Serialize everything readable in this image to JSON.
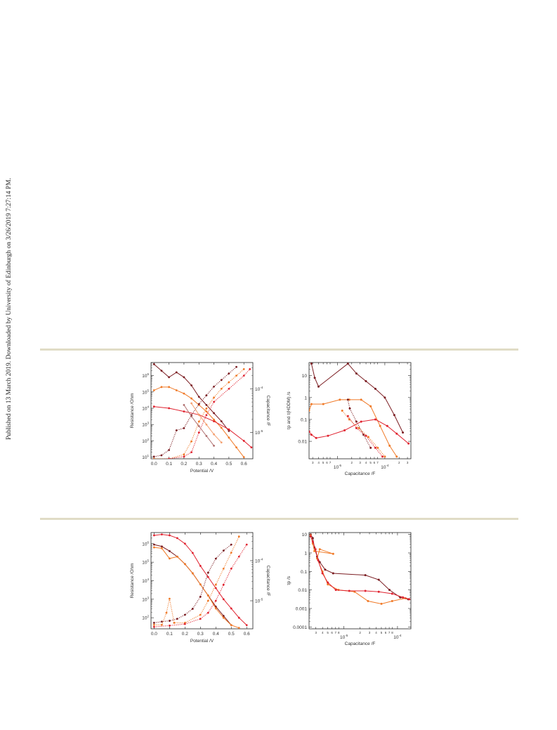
{
  "sidebar_note": "Published on 13 March 2019. Downloaded by University of Edinburgh on 3/26/2019 7:27:14 PM.",
  "colors": {
    "dark": "#7b1d22",
    "orange": "#f07a28",
    "red": "#e0222f",
    "rule": "#e0dcc6"
  },
  "chart_data": [
    {
      "type": "line",
      "xlabel": "Potential /V",
      "ylabel": "Resistance /Ohm",
      "y2label": "Capacitance /F",
      "x_ticks": [
        "0.0",
        "0.1",
        "0.2",
        "0.3",
        "0.4",
        "0.5",
        "0.6"
      ],
      "y_ticks": [
        "10^1",
        "10^2",
        "10^3",
        "10^4",
        "10^5",
        "10^6"
      ],
      "y2_ticks": [
        "10^-5",
        "10^-4"
      ],
      "xlim": [
        -0.02,
        0.66
      ],
      "ylim_log10": [
        0.9,
        6.8
      ],
      "y2lim_log10": [
        -5.6,
        -3.4
      ],
      "series": [
        {
          "axis": "left",
          "style": "solid",
          "color": "dark",
          "x": [
            0.0,
            0.05,
            0.1,
            0.15,
            0.2,
            0.25,
            0.3,
            0.35,
            0.4,
            0.45,
            0.5
          ],
          "y": [
            6.7,
            6.3,
            5.9,
            6.2,
            5.9,
            5.4,
            4.7,
            4.2,
            3.7,
            3.2,
            2.6
          ]
        },
        {
          "axis": "left",
          "style": "solid",
          "color": "orange",
          "x": [
            0.0,
            0.05,
            0.1,
            0.15,
            0.2,
            0.25,
            0.3,
            0.35,
            0.4,
            0.45,
            0.5,
            0.55,
            0.6
          ],
          "y": [
            5.1,
            5.3,
            5.3,
            5.1,
            4.9,
            4.6,
            4.2,
            3.8,
            3.3,
            2.8,
            2.2,
            1.6,
            1.0
          ]
        },
        {
          "axis": "left",
          "style": "solid",
          "color": "red",
          "x": [
            0.0,
            0.1,
            0.2,
            0.3,
            0.4,
            0.5,
            0.6,
            0.65
          ],
          "y": [
            4.1,
            4.0,
            3.8,
            3.6,
            3.2,
            2.7,
            2.0,
            1.6
          ]
        },
        {
          "axis": "right",
          "style": "dotted",
          "color": "dark",
          "x": [
            0.0,
            0.05,
            0.1,
            0.15,
            0.2,
            0.25,
            0.3,
            0.35,
            0.4,
            0.45,
            0.5,
            0.55
          ],
          "y": [
            -5.55,
            -5.52,
            -5.4,
            -4.95,
            -4.9,
            -4.6,
            -4.35,
            -4.15,
            -3.95,
            -3.8,
            -3.65,
            -3.5
          ]
        },
        {
          "axis": "right",
          "style": "dotted",
          "color": "orange",
          "x": [
            0.0,
            0.1,
            0.2,
            0.25,
            0.3,
            0.35,
            0.4,
            0.45,
            0.5,
            0.55,
            0.6
          ],
          "y": [
            -5.6,
            -5.6,
            -5.5,
            -5.2,
            -4.75,
            -4.45,
            -4.2,
            -4.0,
            -3.85,
            -3.7,
            -3.55
          ]
        },
        {
          "axis": "right",
          "style": "dotted",
          "color": "red",
          "x": [
            0.0,
            0.1,
            0.2,
            0.25,
            0.3,
            0.35,
            0.4,
            0.5,
            0.6,
            0.64
          ],
          "y": [
            -5.62,
            -5.6,
            -5.55,
            -5.45,
            -5.0,
            -4.6,
            -4.3,
            -4.0,
            -3.7,
            -3.55
          ]
        },
        {
          "axis": "left",
          "style": "solid",
          "color": "#b07070",
          "x": [
            0.2,
            0.25,
            0.3,
            0.35,
            0.4
          ],
          "y": [
            4.2,
            3.5,
            2.9,
            2.3,
            1.7
          ]
        },
        {
          "axis": "left",
          "style": "solid",
          "color": "#f4a070",
          "x": [
            0.25,
            0.3,
            0.35,
            0.4,
            0.45
          ],
          "y": [
            4.3,
            3.6,
            3.0,
            2.4,
            1.9
          ]
        }
      ]
    },
    {
      "type": "line",
      "xlabel": "Capacitance /F",
      "ylabel": "τp and τ(HDDM) /s",
      "x_ticks": [
        "3",
        "4",
        "5",
        "6",
        "7",
        "10^-5",
        "2",
        "3",
        "4",
        "5",
        "6",
        "7",
        "10^-4",
        "2",
        "3"
      ],
      "y_ticks": [
        "0.01",
        "0.1",
        "1",
        "10"
      ],
      "xlim_log10": [
        -5.6,
        -3.45
      ],
      "ylim_log10": [
        -2.8,
        1.6
      ],
      "series": [
        {
          "style": "solid",
          "color": "dark",
          "x_log10": [
            -5.55,
            -5.48,
            -5.4,
            -4.78,
            -4.6,
            -4.4,
            -4.2,
            -4.0,
            -3.8,
            -3.62
          ],
          "y_log10": [
            1.55,
            0.9,
            0.5,
            1.55,
            1.1,
            0.75,
            0.4,
            0.0,
            -0.8,
            -1.6
          ]
        },
        {
          "style": "solid",
          "color": "orange",
          "x_log10": [
            -5.6,
            -5.55,
            -5.3,
            -4.95,
            -4.75,
            -4.5,
            -4.3,
            -4.1,
            -3.9,
            -3.75
          ],
          "y_log10": [
            -0.6,
            -0.3,
            -0.3,
            -0.1,
            -0.1,
            -0.1,
            -0.4,
            -1.3,
            -2.2,
            -2.7
          ]
        },
        {
          "style": "solid",
          "color": "red",
          "x_log10": [
            -5.6,
            -5.55,
            -5.45,
            -5.2,
            -4.85,
            -4.5,
            -4.2,
            -3.95,
            -3.75,
            -3.5
          ],
          "y_log10": [
            -1.55,
            -1.7,
            -1.85,
            -1.75,
            -1.5,
            -1.1,
            -1.0,
            -1.3,
            -1.65,
            -2.1
          ]
        },
        {
          "style": "dotted",
          "color": "dark",
          "x_log10": [
            -4.78,
            -4.74,
            -4.6,
            -4.45,
            -4.3
          ],
          "y_log10": [
            -0.1,
            -0.5,
            -1.1,
            -1.7,
            -2.3
          ]
        },
        {
          "style": "dotted",
          "color": "orange",
          "x_log10": [
            -4.9,
            -4.75,
            -4.55,
            -4.35,
            -4.15,
            -4.0
          ],
          "y_log10": [
            -0.6,
            -1.0,
            -1.4,
            -1.8,
            -2.3,
            -2.7
          ]
        },
        {
          "style": "dotted",
          "color": "red",
          "x_log10": [
            -4.78,
            -4.6,
            -4.4,
            -4.2,
            -4.05
          ],
          "y_log10": [
            -0.85,
            -1.4,
            -1.75,
            -2.3,
            -2.7
          ]
        }
      ]
    },
    {
      "type": "line",
      "xlabel": "Potential /V",
      "ylabel": "Resistance /Ohm",
      "y2label": "Capacitance /F",
      "x_ticks": [
        "0.0",
        "0.1",
        "0.2",
        "0.3",
        "0.4",
        "0.5",
        "0.6"
      ],
      "y_ticks": [
        "10^2",
        "10^3",
        "10^4",
        "10^5",
        "10^6"
      ],
      "y2_ticks": [
        "10^-5",
        "10^-4"
      ],
      "xlim": [
        -0.02,
        0.64
      ],
      "ylim_log10": [
        1.4,
        6.6
      ],
      "y2lim_log10": [
        -5.7,
        -3.3
      ],
      "series": [
        {
          "axis": "left",
          "style": "solid",
          "color": "red",
          "x": [
            0.0,
            0.05,
            0.1,
            0.15,
            0.2,
            0.25,
            0.3,
            0.35,
            0.4,
            0.45,
            0.5,
            0.55,
            0.6
          ],
          "y": [
            6.45,
            6.5,
            6.45,
            6.3,
            6.0,
            5.5,
            4.8,
            4.2,
            3.6,
            3.0,
            2.5,
            2.0,
            1.6
          ]
        },
        {
          "axis": "left",
          "style": "solid",
          "color": "dark",
          "x": [
            0.0,
            0.05,
            0.1,
            0.15,
            0.2,
            0.25,
            0.3,
            0.35,
            0.4,
            0.45,
            0.5
          ],
          "y": [
            5.95,
            5.85,
            5.6,
            5.3,
            4.9,
            4.4,
            3.8,
            3.2,
            2.6,
            2.1,
            1.6
          ]
        },
        {
          "axis": "left",
          "style": "solid",
          "color": "orange",
          "x": [
            0.0,
            0.05,
            0.1,
            0.15,
            0.2,
            0.25,
            0.3,
            0.35,
            0.4,
            0.45,
            0.5,
            0.55
          ],
          "y": [
            5.8,
            5.75,
            5.2,
            5.3,
            4.9,
            4.4,
            3.8,
            3.2,
            2.5,
            2.0,
            1.6,
            1.45
          ]
        },
        {
          "axis": "right",
          "style": "dotted",
          "color": "dark",
          "x": [
            0.0,
            0.05,
            0.1,
            0.15,
            0.2,
            0.25,
            0.3,
            0.35,
            0.4,
            0.45,
            0.5
          ],
          "y": [
            -5.55,
            -5.52,
            -5.5,
            -5.45,
            -5.35,
            -5.2,
            -4.9,
            -4.3,
            -3.95,
            -3.75,
            -3.6
          ]
        },
        {
          "axis": "right",
          "style": "dotted",
          "color": "orange",
          "x": [
            0.0,
            0.05,
            0.08,
            0.1,
            0.13,
            0.2,
            0.3,
            0.35,
            0.4,
            0.45,
            0.5,
            0.55
          ],
          "y": [
            -5.6,
            -5.6,
            -5.3,
            -4.95,
            -5.55,
            -5.55,
            -5.35,
            -5.0,
            -4.6,
            -4.2,
            -3.8,
            -3.4
          ]
        },
        {
          "axis": "right",
          "style": "dotted",
          "color": "red",
          "x": [
            0.0,
            0.1,
            0.2,
            0.3,
            0.35,
            0.4,
            0.45,
            0.5,
            0.55,
            0.6
          ],
          "y": [
            -5.65,
            -5.62,
            -5.58,
            -5.45,
            -5.3,
            -5.0,
            -4.6,
            -4.2,
            -3.9,
            -3.6
          ]
        }
      ]
    },
    {
      "type": "line",
      "xlabel": "Capacitance /F",
      "ylabel": "τp /s",
      "x_ticks": [
        "3",
        "4",
        "5",
        "6",
        "7",
        "8",
        "10^-5",
        "2",
        "3",
        "4",
        "5",
        "6",
        "7",
        "8",
        "10^-4"
      ],
      "y_ticks": [
        "0.0001",
        "0.001",
        "0.01",
        "0.1",
        "1",
        "10"
      ],
      "xlim_log10": [
        -5.65,
        -3.75
      ],
      "ylim_log10": [
        -4.1,
        1.1
      ],
      "series": [
        {
          "style": "solid",
          "color": "dark",
          "x_log10": [
            -5.62,
            -5.58,
            -5.55,
            -5.5,
            -5.45,
            -5.35,
            -5.2,
            -4.6,
            -4.35,
            -4.15,
            -3.95,
            -3.8
          ],
          "y_log10": [
            1.0,
            0.8,
            0.3,
            -0.2,
            -0.5,
            -0.9,
            -1.1,
            -1.2,
            -1.45,
            -2.0,
            -2.4,
            -2.5
          ]
        },
        {
          "style": "solid",
          "color": "orange",
          "x_log10": [
            -5.62,
            -5.58,
            -5.55,
            -5.2,
            -5.45,
            -5.5,
            -5.4,
            -5.3,
            -5.1,
            -4.8,
            -4.55,
            -4.3,
            -4.1,
            -3.85
          ],
          "y_log10": [
            0.95,
            0.5,
            0.1,
            -0.05,
            0.2,
            -0.3,
            -1.0,
            -1.7,
            -2.0,
            -2.1,
            -2.6,
            -2.75,
            -2.6,
            -2.45
          ]
        },
        {
          "style": "solid",
          "color": "red",
          "x_log10": [
            -5.62,
            -5.58,
            -5.53,
            -5.48,
            -5.4,
            -5.3,
            -5.15,
            -4.9,
            -4.6,
            -4.35,
            -4.1,
            -3.9,
            -3.78
          ],
          "y_log10": [
            0.9,
            0.6,
            0.2,
            -0.4,
            -1.1,
            -1.6,
            -2.0,
            -2.05,
            -2.05,
            -2.1,
            -2.2,
            -2.4,
            -2.5
          ]
        }
      ]
    }
  ]
}
